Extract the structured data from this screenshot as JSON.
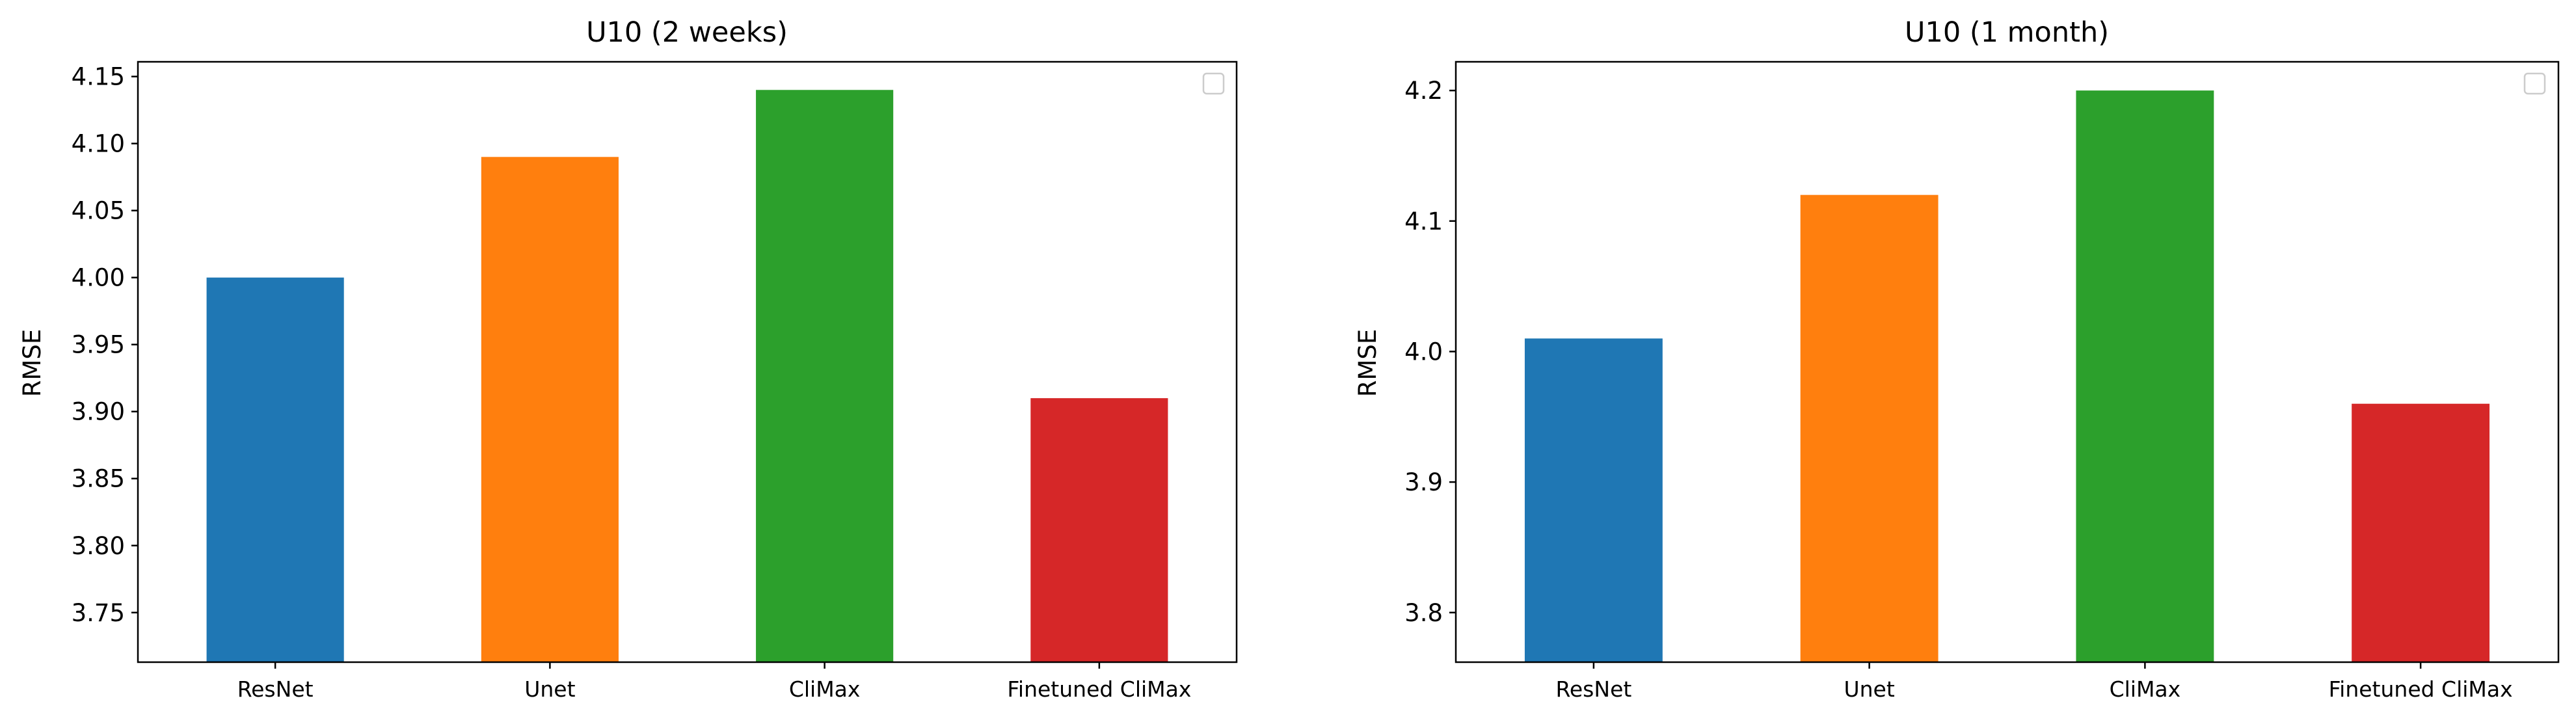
{
  "chart_data": [
    {
      "type": "bar",
      "title": "U10 (2 weeks)",
      "xlabel": "",
      "ylabel": "RMSE",
      "categories": [
        "ResNet",
        "Unet",
        "CliMax",
        "Finetuned CliMax"
      ],
      "values": [
        4.0,
        4.09,
        4.14,
        3.91
      ],
      "colors": [
        "#1f77b4",
        "#ff7f0e",
        "#2ca02c",
        "#d62728"
      ],
      "ylim": [
        3.713,
        4.161
      ],
      "yticks": [
        3.75,
        3.8,
        3.85,
        3.9,
        3.95,
        4.0,
        4.05,
        4.1,
        4.15
      ],
      "ytick_labels": [
        "3.75",
        "3.80",
        "3.85",
        "3.90",
        "3.95",
        "4.00",
        "4.05",
        "4.10",
        "4.15"
      ],
      "grid": false,
      "legend": "upper-right (empty)"
    },
    {
      "type": "bar",
      "title": "U10 (1 month)",
      "xlabel": "",
      "ylabel": "RMSE",
      "categories": [
        "ResNet",
        "Unet",
        "CliMax",
        "Finetuned CliMax"
      ],
      "values": [
        4.01,
        4.12,
        4.2,
        3.96
      ],
      "colors": [
        "#1f77b4",
        "#ff7f0e",
        "#2ca02c",
        "#d62728"
      ],
      "ylim": [
        3.762,
        4.222
      ],
      "yticks": [
        3.8,
        3.9,
        4.0,
        4.1,
        4.2
      ],
      "ytick_labels": [
        "3.8",
        "3.9",
        "4.0",
        "4.1",
        "4.2"
      ],
      "grid": false,
      "legend": "upper-right (empty)"
    }
  ]
}
